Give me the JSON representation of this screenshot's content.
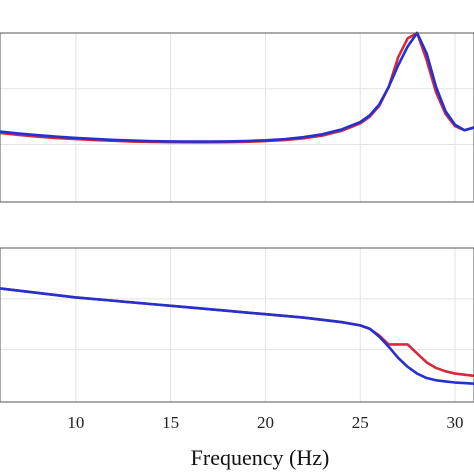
{
  "chart_data": [
    {
      "type": "line",
      "title": "",
      "xlabel": "",
      "ylabel": "",
      "xlim": [
        6,
        31
      ],
      "ylim": [
        0,
        1
      ],
      "xticks": [
        10,
        15,
        20,
        25,
        30
      ],
      "grid": true,
      "series": [
        {
          "color": "#d62a3c",
          "x": [
            6,
            7,
            8,
            9,
            10,
            11,
            12,
            13,
            14,
            15,
            16,
            17,
            18,
            19,
            20,
            21,
            22,
            23,
            24,
            25,
            25.5,
            26,
            26.5,
            27,
            27.5,
            28,
            28.5,
            29,
            29.5,
            30,
            30.5,
            31
          ],
          "y": [
            0.26,
            0.245,
            0.232,
            0.222,
            0.214,
            0.207,
            0.201,
            0.196,
            0.193,
            0.191,
            0.19,
            0.19,
            0.191,
            0.194,
            0.199,
            0.207,
            0.22,
            0.24,
            0.275,
            0.33,
            0.38,
            0.46,
            0.6,
            0.82,
            0.96,
            1.0,
            0.8,
            0.56,
            0.4,
            0.31,
            0.28,
            0.3
          ]
        },
        {
          "color": "#2430cf",
          "x": [
            6,
            7,
            8,
            9,
            10,
            11,
            12,
            13,
            14,
            15,
            16,
            17,
            18,
            19,
            20,
            21,
            22,
            23,
            24,
            25,
            25.5,
            26,
            26.5,
            27,
            27.5,
            28,
            28.5,
            29,
            29.5,
            30,
            30.5,
            31
          ],
          "y": [
            0.27,
            0.255,
            0.243,
            0.232,
            0.223,
            0.215,
            0.208,
            0.203,
            0.199,
            0.197,
            0.196,
            0.196,
            0.197,
            0.2,
            0.205,
            0.214,
            0.228,
            0.25,
            0.285,
            0.34,
            0.39,
            0.47,
            0.6,
            0.76,
            0.9,
            1.0,
            0.85,
            0.6,
            0.42,
            0.32,
            0.28,
            0.3
          ]
        }
      ]
    },
    {
      "type": "line",
      "title": "",
      "xlabel": "Frequency (Hz)",
      "ylabel": "",
      "xlim": [
        6,
        31
      ],
      "ylim": [
        0,
        1
      ],
      "xticks": [
        10,
        15,
        20,
        25,
        30
      ],
      "grid": true,
      "series": [
        {
          "color": "#d62a3c",
          "x": [
            6,
            8,
            10,
            12,
            14,
            16,
            18,
            20,
            22,
            24,
            25,
            25.5,
            26,
            26.5,
            27,
            27.5,
            28,
            28.5,
            29,
            29.5,
            30,
            30.5,
            31
          ],
          "y": [
            0.88,
            0.84,
            0.8,
            0.77,
            0.74,
            0.71,
            0.68,
            0.65,
            0.62,
            0.58,
            0.55,
            0.52,
            0.46,
            0.38,
            0.38,
            0.38,
            0.3,
            0.22,
            0.17,
            0.14,
            0.12,
            0.11,
            0.1
          ]
        },
        {
          "color": "#2430cf",
          "x": [
            6,
            8,
            10,
            12,
            14,
            16,
            18,
            20,
            22,
            24,
            25,
            25.5,
            26,
            26.5,
            27,
            27.5,
            28,
            28.5,
            29,
            29.5,
            30,
            30.5,
            31
          ],
          "y": [
            0.88,
            0.84,
            0.8,
            0.77,
            0.74,
            0.71,
            0.68,
            0.65,
            0.62,
            0.58,
            0.55,
            0.52,
            0.45,
            0.36,
            0.26,
            0.18,
            0.12,
            0.08,
            0.06,
            0.05,
            0.04,
            0.035,
            0.03
          ]
        }
      ]
    }
  ]
}
